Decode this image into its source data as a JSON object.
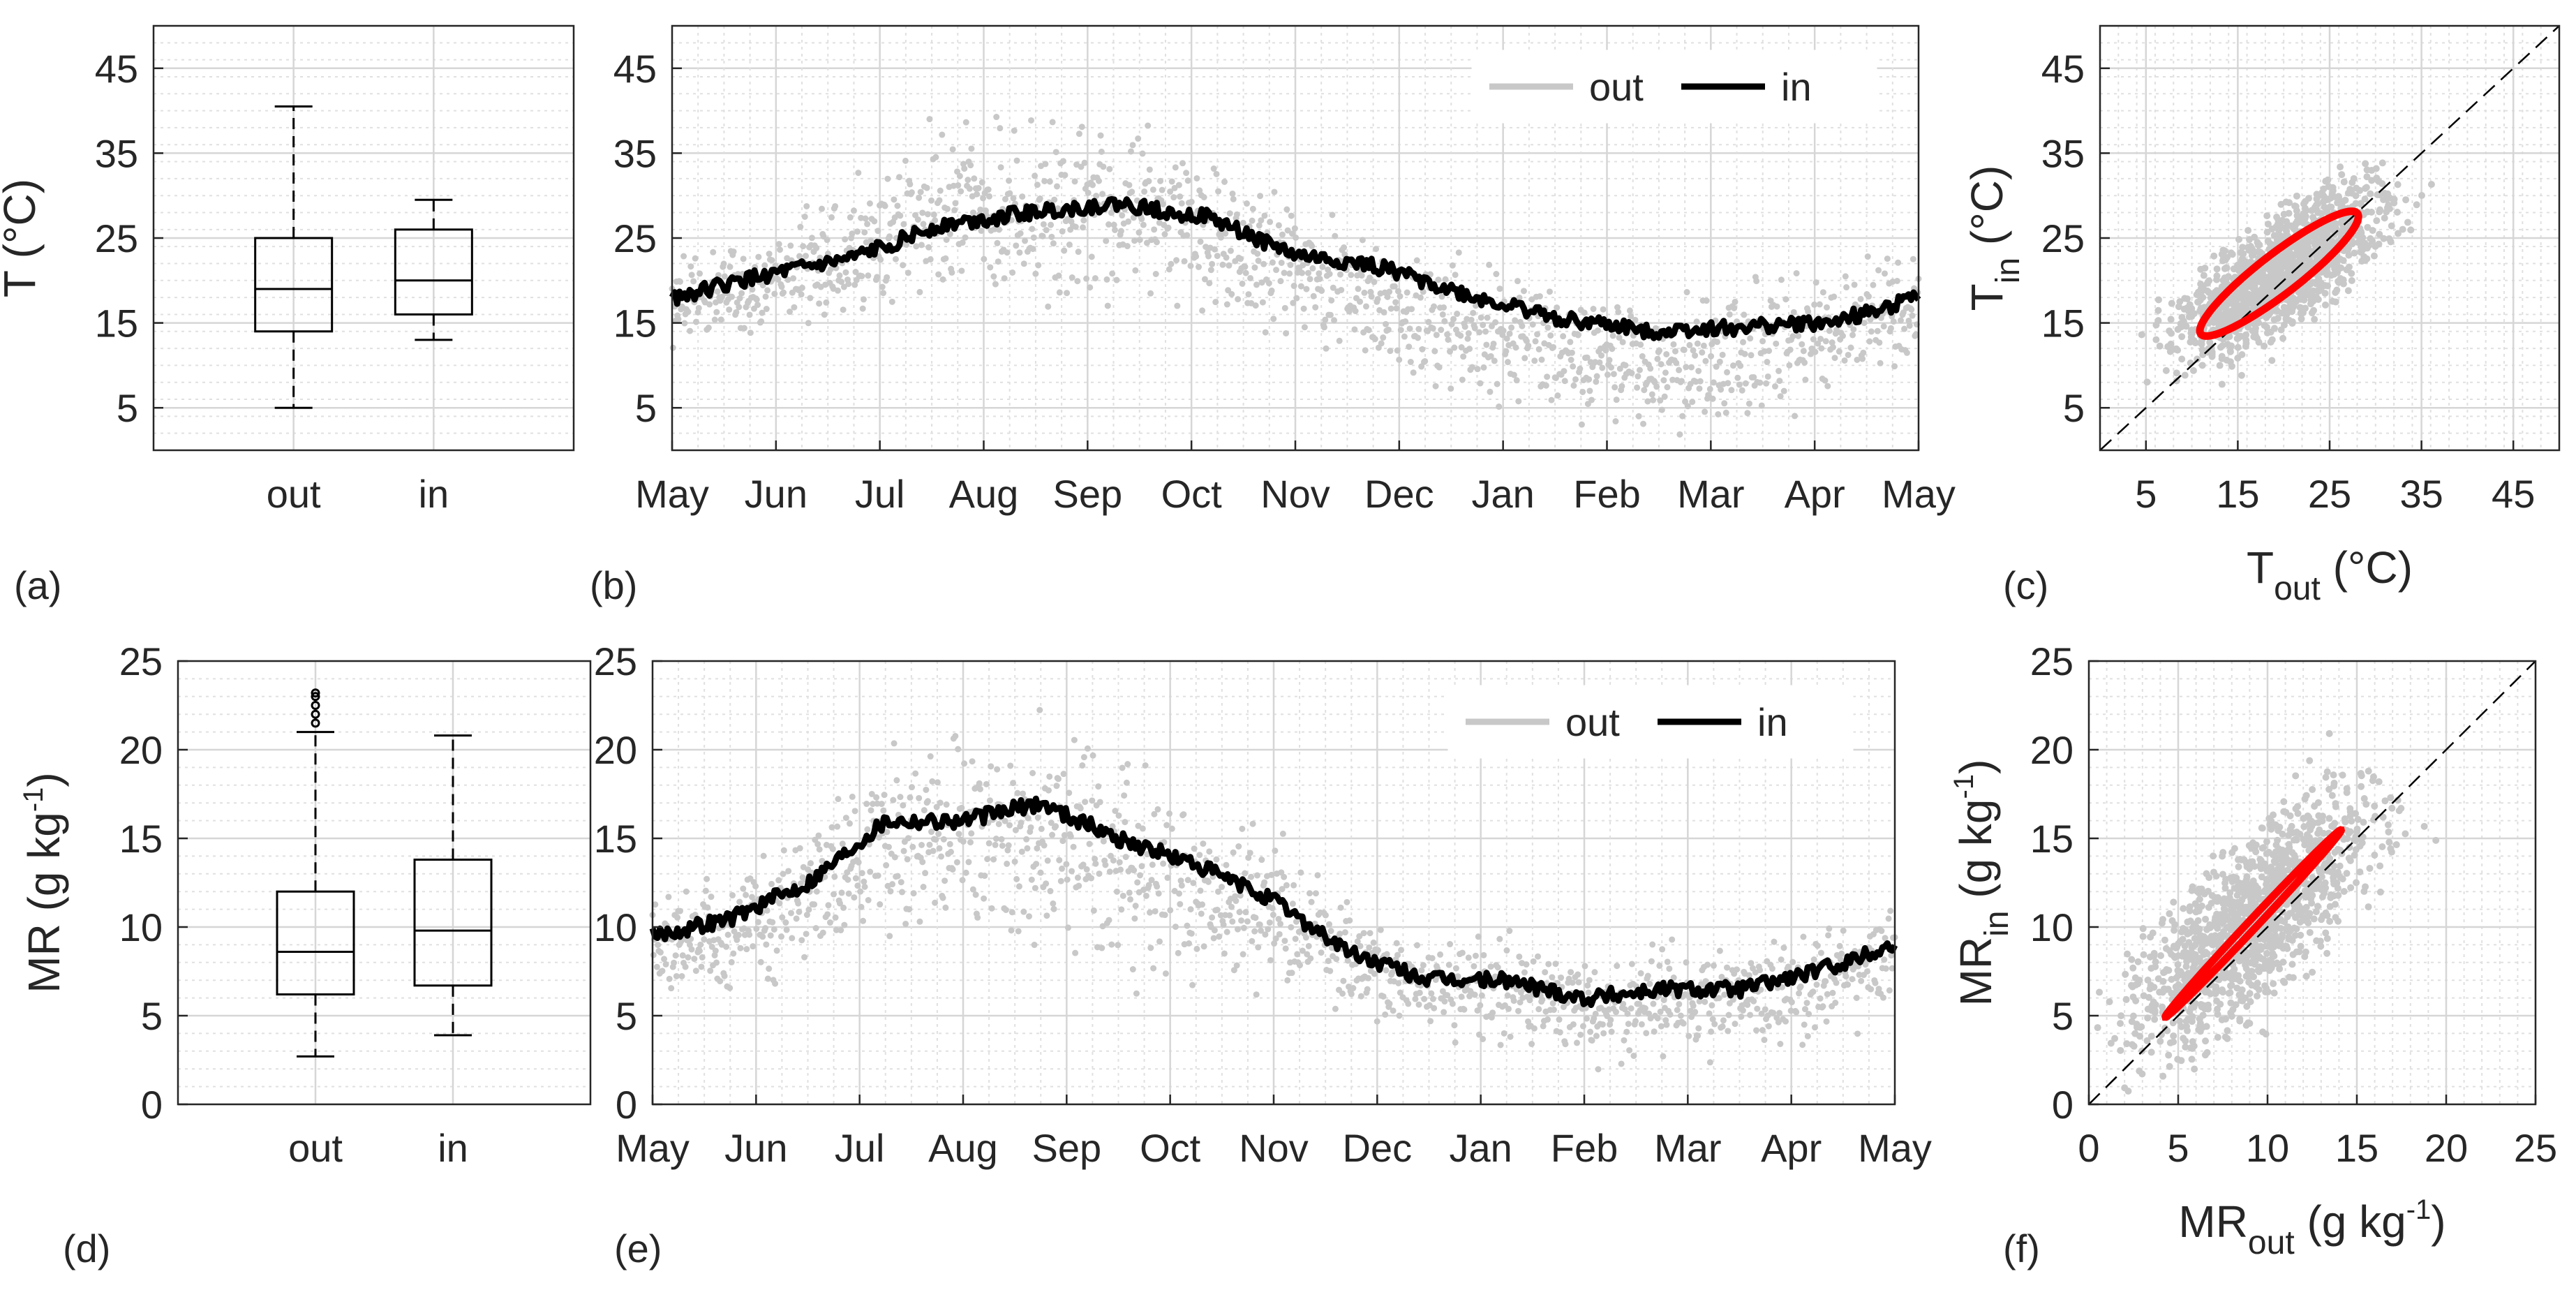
{
  "colors": {
    "out": "#c8c8c8",
    "in": "#000000",
    "ellipse": "#ff0000",
    "grid": "#e0e0e0",
    "axis": "#262626"
  },
  "chart_data": [
    {
      "id": "a",
      "panel_label": "(a)",
      "type": "box",
      "categories": [
        "out",
        "in"
      ],
      "ylabel": "T (°C)",
      "ylim": [
        0,
        50
      ],
      "yticks": [
        "5",
        "15",
        "25",
        "35",
        "45"
      ],
      "boxes": [
        {
          "name": "out",
          "whisker_low": 5,
          "q1": 14,
          "median": 19,
          "q3": 25,
          "whisker_high": 40.5
        },
        {
          "name": "in",
          "whisker_low": 13,
          "q1": 16,
          "median": 20,
          "q3": 26,
          "whisker_high": 29.5
        }
      ],
      "grid": true
    },
    {
      "id": "b",
      "panel_label": "(b)",
      "type": "line",
      "xticks": [
        "May",
        "Jun",
        "Jul",
        "Aug",
        "Sep",
        "Oct",
        "Nov",
        "Dec",
        "Jan",
        "Feb",
        "Mar",
        "Apr",
        "May"
      ],
      "ylim": [
        0,
        50
      ],
      "yticks": [
        "5",
        "15",
        "25",
        "35",
        "45"
      ],
      "legend": {
        "position": "top-right",
        "entries": [
          "out",
          "in"
        ]
      },
      "series": [
        {
          "name": "in",
          "values": [
            18,
            20.5,
            22.5,
            26.5,
            28,
            29,
            27.5,
            23,
            21.5,
            18,
            15.5,
            14,
            14.5,
            15,
            18
          ]
        },
        {
          "name": "out",
          "values": [
            18,
            19,
            23,
            28,
            28,
            29,
            26,
            21,
            17,
            14,
            12,
            10,
            11,
            13,
            16
          ],
          "spread": [
            6,
            6,
            8,
            10,
            10,
            10,
            9,
            8,
            8,
            8,
            8,
            8,
            8,
            8,
            7
          ]
        }
      ],
      "grid": true
    },
    {
      "id": "c",
      "panel_label": "(c)",
      "type": "scatter",
      "xlabel": "T",
      "xlabel_sub": "out",
      "xlabel_unit": " (°C)",
      "ylabel": "T",
      "ylabel_sub": "in",
      "ylabel_unit": " (°C)",
      "xlim": [
        0,
        50
      ],
      "ylim": [
        0,
        50
      ],
      "xticks": [
        "5",
        "15",
        "25",
        "35",
        "45"
      ],
      "yticks": [
        "5",
        "15",
        "25",
        "35",
        "45"
      ],
      "ellipse": {
        "center": [
          19.5,
          20.8
        ],
        "semi_major": 11.1,
        "semi_minor": 2.3,
        "angle_deg": 40
      },
      "one_to_one_line": true,
      "grid": true
    },
    {
      "id": "d",
      "panel_label": "(d)",
      "type": "box",
      "categories": [
        "out",
        "in"
      ],
      "ylabel": "MR (g kg",
      "ylabel_sup": "-1",
      "ylabel_end": ")",
      "ylim": [
        0,
        25
      ],
      "yticks": [
        "0",
        "5",
        "10",
        "15",
        "20",
        "25"
      ],
      "boxes": [
        {
          "name": "out",
          "whisker_low": 2.7,
          "q1": 6.2,
          "median": 8.6,
          "q3": 12,
          "whisker_high": 21,
          "outliers": [
            21.5,
            22,
            22.5,
            23,
            23.2
          ]
        },
        {
          "name": "in",
          "whisker_low": 3.9,
          "q1": 6.7,
          "median": 9.8,
          "q3": 13.8,
          "whisker_high": 20.8
        }
      ],
      "grid": true
    },
    {
      "id": "e",
      "panel_label": "(e)",
      "type": "line",
      "xticks": [
        "May",
        "Jun",
        "Jul",
        "Aug",
        "Sep",
        "Oct",
        "Nov",
        "Dec",
        "Jan",
        "Feb",
        "Mar",
        "Apr",
        "May"
      ],
      "ylim": [
        0,
        25
      ],
      "yticks": [
        "0",
        "5",
        "10",
        "15",
        "20",
        "25"
      ],
      "legend": {
        "position": "top-right",
        "entries": [
          "out",
          "in"
        ]
      },
      "series": [
        {
          "name": "in",
          "values": [
            9.5,
            10.5,
            12.5,
            16,
            16,
            17,
            15,
            13.5,
            11.5,
            8.5,
            7,
            7,
            6,
            6.5,
            6.5,
            7.5,
            9
          ]
        },
        {
          "name": "out",
          "values": [
            9,
            9.5,
            12,
            15,
            14.5,
            15,
            13.5,
            12,
            11,
            8,
            6.5,
            6.5,
            5.5,
            6,
            6,
            7,
            8.5
          ],
          "spread": [
            3,
            3,
            4,
            5,
            6,
            6,
            6,
            5,
            4,
            3,
            3,
            3,
            3,
            3,
            3,
            3,
            3
          ]
        }
      ],
      "grid": true
    },
    {
      "id": "f",
      "panel_label": "(f)",
      "type": "scatter",
      "xlabel": "MR",
      "xlabel_sub": "out",
      "xlabel_unit": " (g kg",
      "xlabel_sup": "-1",
      "xlabel_end": ")",
      "ylabel": "MR",
      "ylabel_sub": "in",
      "ylabel_unit": " (g kg",
      "ylabel_sup": "-1",
      "ylabel_end": ")",
      "xlim": [
        0,
        25
      ],
      "ylim": [
        0,
        25
      ],
      "xticks": [
        "0",
        "5",
        "10",
        "15",
        "20",
        "25"
      ],
      "yticks": [
        "0",
        "5",
        "10",
        "15",
        "20",
        "25"
      ],
      "ellipse": {
        "center": [
          9.2,
          10.2
        ],
        "semi_major": 7.2,
        "semi_minor": 0.25,
        "angle_deg": 47
      },
      "one_to_one_line": true,
      "grid": true
    }
  ]
}
